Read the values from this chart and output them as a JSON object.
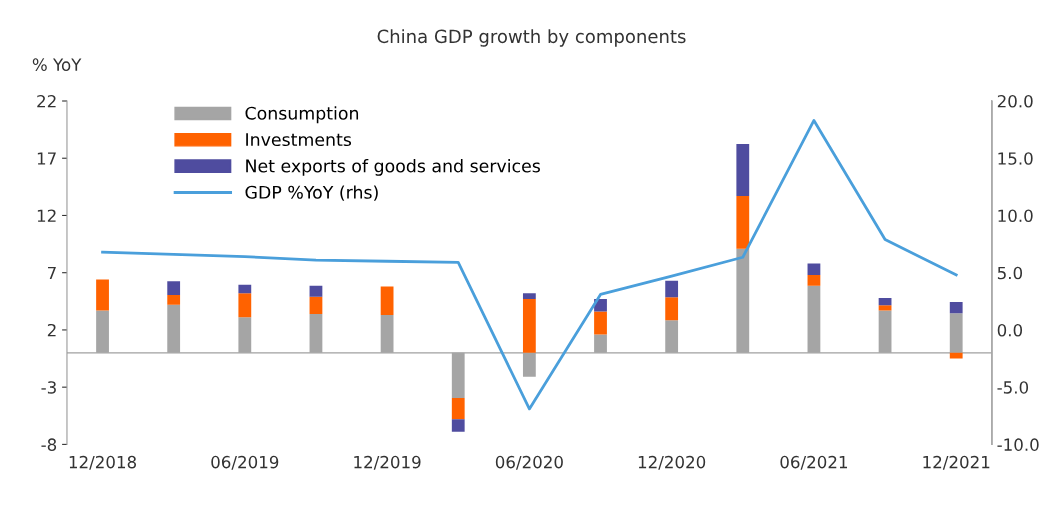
{
  "chart_data": {
    "type": "bar",
    "stacked": true,
    "title": "China GDP growth by components",
    "ylabel": "% YoY",
    "categories": [
      "12/2018",
      null,
      "06/2019",
      null,
      "12/2019",
      null,
      "06/2020",
      null,
      "12/2020",
      null,
      "06/2021",
      null,
      "12/2021"
    ],
    "series": [
      {
        "name": "Consumption",
        "color": "#a5a5a5",
        "values": [
          3.7,
          4.2,
          3.1,
          3.4,
          3.3,
          -3.95,
          -2.1,
          1.6,
          2.85,
          9.1,
          5.85,
          3.7,
          3.45
        ]
      },
      {
        "name": "Investments",
        "color": "#ff6200",
        "values": [
          2.7,
          0.85,
          2.1,
          1.5,
          2.5,
          -1.85,
          4.7,
          2.0,
          2.0,
          4.6,
          0.95,
          0.45,
          -0.5
        ]
      },
      {
        "name": "Net exports of goods and services",
        "color": "#4f4c9f",
        "values": [
          0,
          1.2,
          0.75,
          0.95,
          0,
          -1.1,
          0.5,
          1.1,
          1.45,
          4.55,
          1.0,
          0.65,
          1.0
        ]
      },
      {
        "name": "GDP %YoY (rhs)",
        "type": "line",
        "axis": "y2",
        "color": "#4a9fdb",
        "values": [
          6.8,
          6.6,
          6.4,
          6.1,
          6.0,
          5.9,
          -6.9,
          3.1,
          4.7,
          6.35,
          18.3,
          7.9,
          4.8
        ]
      }
    ],
    "ylim": [
      -8,
      22
    ],
    "yticks": [
      -8,
      -3,
      2,
      7,
      12,
      17,
      22
    ],
    "y2lim": [
      -10,
      20
    ],
    "y2ticks": [
      {
        "value": -10,
        "label": "-10.0"
      },
      {
        "value": -5,
        "label": "-5.0"
      },
      {
        "value": 0,
        "label": "0.0"
      },
      {
        "value": 5,
        "label": "5.0"
      },
      {
        "value": 10,
        "label": "10.0"
      },
      {
        "value": 15,
        "label": "15.0"
      },
      {
        "value": 20,
        "label": "20.0"
      }
    ],
    "ref_lines": [
      {
        "axis": "y",
        "value": 0,
        "color": "#a0a0a0"
      }
    ],
    "legend": "top left",
    "grid": false
  }
}
